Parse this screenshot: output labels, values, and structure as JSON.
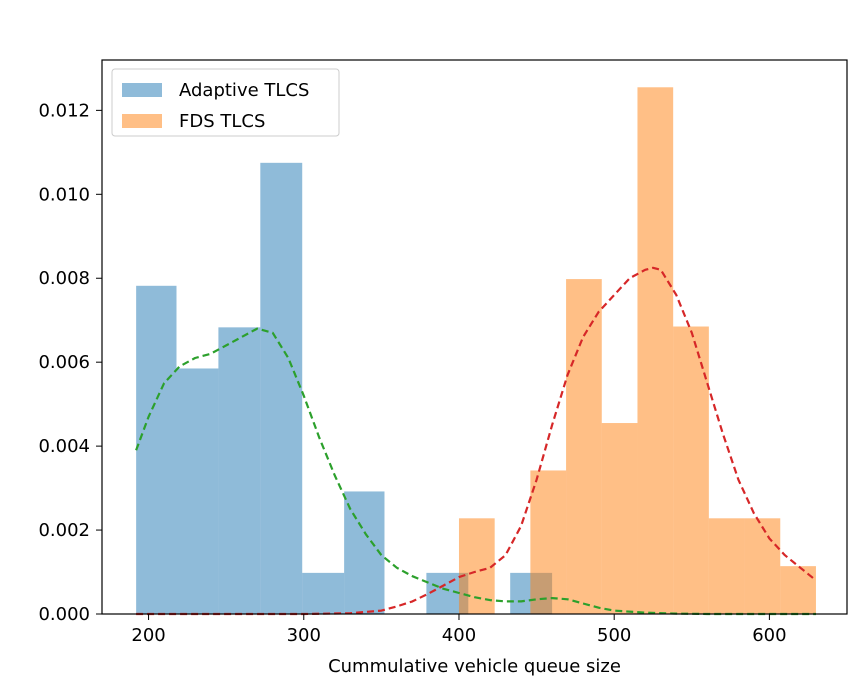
{
  "chart_data": {
    "type": "histogram",
    "title": "",
    "xlabel": "Cummulative vehicle queue size",
    "ylabel": "",
    "xlim": [
      170,
      650
    ],
    "ylim": [
      0,
      0.0132
    ],
    "xticks": [
      200,
      300,
      400,
      500,
      600
    ],
    "yticks": [
      0.0,
      0.002,
      0.004,
      0.006,
      0.008,
      0.01,
      0.012
    ],
    "ytick_labels": [
      "0.000",
      "0.002",
      "0.004",
      "0.006",
      "0.008",
      "0.010",
      "0.012"
    ],
    "grid": false,
    "legend_position": "top-left",
    "series": [
      {
        "name": "Adaptive TLCS",
        "color": "#1f77b4",
        "alpha": 0.5,
        "bins": [
          {
            "x0": 192,
            "x1": 218,
            "density": 0.00782
          },
          {
            "x0": 218,
            "x1": 245,
            "density": 0.00585
          },
          {
            "x0": 245,
            "x1": 272,
            "density": 0.00683
          },
          {
            "x0": 272,
            "x1": 299,
            "density": 0.01075
          },
          {
            "x0": 299,
            "x1": 326,
            "density": 0.00098
          },
          {
            "x0": 326,
            "x1": 352,
            "density": 0.00292
          },
          {
            "x0": 352,
            "x1": 379,
            "density": 0.0
          },
          {
            "x0": 379,
            "x1": 406,
            "density": 0.00098
          },
          {
            "x0": 406,
            "x1": 433,
            "density": 0.0
          },
          {
            "x0": 433,
            "x1": 460,
            "density": 0.00098
          }
        ]
      },
      {
        "name": "FDS TLCS",
        "color": "#ff7f0e",
        "alpha": 0.5,
        "bins": [
          {
            "x0": 400,
            "x1": 423,
            "density": 0.00228
          },
          {
            "x0": 423,
            "x1": 446,
            "density": 0.0
          },
          {
            "x0": 446,
            "x1": 469,
            "density": 0.00342
          },
          {
            "x0": 469,
            "x1": 492,
            "density": 0.00798
          },
          {
            "x0": 492,
            "x1": 515,
            "density": 0.00455
          },
          {
            "x0": 515,
            "x1": 538,
            "density": 0.01255
          },
          {
            "x0": 538,
            "x1": 561,
            "density": 0.00685
          },
          {
            "x0": 561,
            "x1": 584,
            "density": 0.00228
          },
          {
            "x0": 584,
            "x1": 607,
            "density": 0.00228
          },
          {
            "x0": 607,
            "x1": 630,
            "density": 0.00114
          }
        ]
      }
    ],
    "kde_curves": [
      {
        "for_series": "Adaptive TLCS",
        "color": "#2ca02c",
        "style": "dashed",
        "x": [
          192,
          200,
          210,
          220,
          230,
          240,
          250,
          260,
          270,
          280,
          290,
          300,
          310,
          320,
          330,
          340,
          350,
          360,
          370,
          380,
          390,
          400,
          410,
          420,
          430,
          440,
          450,
          460,
          470,
          480,
          490,
          500,
          520,
          540,
          560,
          580,
          600,
          630
        ],
        "y": [
          0.0039,
          0.0047,
          0.0055,
          0.0059,
          0.0061,
          0.0062,
          0.0064,
          0.0066,
          0.0068,
          0.0067,
          0.0061,
          0.0052,
          0.0042,
          0.0033,
          0.0025,
          0.0019,
          0.0014,
          0.0011,
          0.0009,
          0.00075,
          0.0006,
          0.0005,
          0.0004,
          0.00033,
          0.0003,
          0.0003,
          0.00035,
          0.00038,
          0.00035,
          0.00025,
          0.00015,
          8e-05,
          3e-05,
          1e-05,
          0.0,
          0.0,
          0.0,
          0.0
        ]
      },
      {
        "for_series": "FDS TLCS",
        "color": "#d62728",
        "style": "dashed",
        "x": [
          192,
          250,
          300,
          330,
          350,
          360,
          370,
          380,
          390,
          400,
          410,
          420,
          430,
          440,
          450,
          460,
          470,
          480,
          490,
          500,
          510,
          520,
          525,
          530,
          540,
          550,
          560,
          570,
          580,
          590,
          600,
          610,
          620,
          630
        ],
        "y": [
          0.0,
          0.0,
          0.0,
          2e-05,
          8e-05,
          0.00018,
          0.0003,
          0.00048,
          0.00068,
          0.00088,
          0.001,
          0.0011,
          0.0014,
          0.0021,
          0.0032,
          0.0045,
          0.0057,
          0.0066,
          0.0072,
          0.0076,
          0.008,
          0.0082,
          0.00825,
          0.0082,
          0.0076,
          0.0067,
          0.0055,
          0.0043,
          0.0032,
          0.0024,
          0.0018,
          0.0014,
          0.0011,
          0.0008
        ]
      }
    ]
  }
}
